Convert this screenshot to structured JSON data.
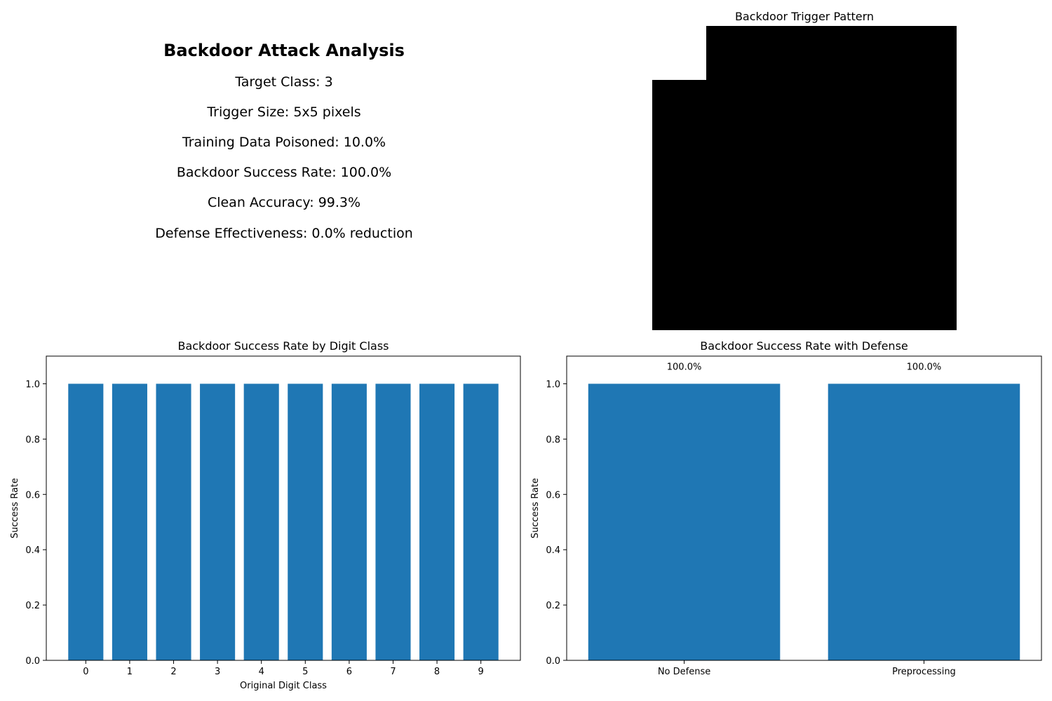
{
  "summary": {
    "title": "Backdoor Attack Analysis",
    "lines": [
      "Target Class: 3",
      "Trigger Size: 5x5 pixels",
      "Training Data Poisoned: 10.0%",
      "Backdoor Success Rate: 100.0%",
      "Clean Accuracy: 99.3%",
      "Defense Effectiveness: 0.0% reduction"
    ]
  },
  "trigger": {
    "title": "Backdoor Trigger Pattern",
    "color": "#000000"
  },
  "chart_data": [
    {
      "type": "bar",
      "title": "Backdoor Success Rate by Digit Class",
      "xlabel": "Original Digit Class",
      "ylabel": "Success Rate",
      "categories": [
        "0",
        "1",
        "2",
        "3",
        "4",
        "5",
        "6",
        "7",
        "8",
        "9"
      ],
      "values": [
        1.0,
        1.0,
        1.0,
        1.0,
        1.0,
        1.0,
        1.0,
        1.0,
        1.0,
        1.0
      ],
      "ylim": [
        0,
        1.1
      ],
      "yticks": [
        0.0,
        0.2,
        0.4,
        0.6,
        0.8,
        1.0
      ],
      "ytick_labels": [
        "0.0",
        "0.2",
        "0.4",
        "0.6",
        "0.8",
        "1.0"
      ],
      "data_labels": [],
      "grid": false,
      "color": "#1f77b4"
    },
    {
      "type": "bar",
      "title": "Backdoor Success Rate with Defense",
      "xlabel": "",
      "ylabel": "Success Rate",
      "categories": [
        "No Defense",
        "Preprocessing"
      ],
      "values": [
        1.0,
        1.0
      ],
      "ylim": [
        0,
        1.1
      ],
      "yticks": [
        0.0,
        0.2,
        0.4,
        0.6,
        0.8,
        1.0
      ],
      "ytick_labels": [
        "0.0",
        "0.2",
        "0.4",
        "0.6",
        "0.8",
        "1.0"
      ],
      "data_labels": [
        "100.0%",
        "100.0%"
      ],
      "grid": false,
      "color": "#1f77b4"
    }
  ]
}
